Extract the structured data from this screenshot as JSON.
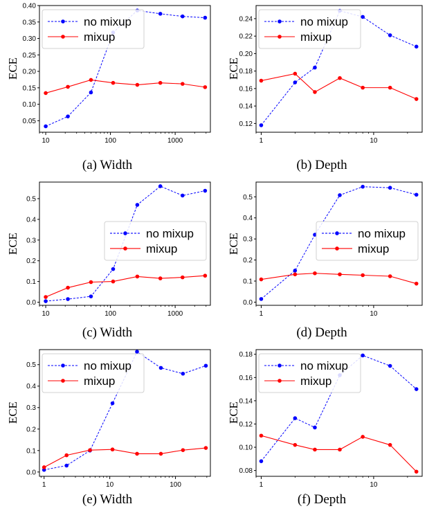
{
  "chart_data": [
    {
      "type": "line",
      "caption": "(a) Width",
      "ylabel": "ECE",
      "xscale": "log",
      "xlim": [
        8,
        3500
      ],
      "ylim": [
        0.015,
        0.4
      ],
      "xticks": [
        10,
        100,
        1000
      ],
      "yticks": [
        0.05,
        0.1,
        0.15,
        0.2,
        0.25,
        0.3,
        0.35,
        0.4
      ],
      "ytick_labels": [
        "0.05",
        "0.10",
        "0.15",
        "0.20",
        "0.25",
        "0.30",
        "0.35",
        "0.40"
      ],
      "legend": "top-left",
      "x": [
        10,
        22,
        50,
        110,
        260,
        590,
        1300,
        2900
      ],
      "series": [
        {
          "name": "no mixup",
          "color": "#0000ff",
          "dash": true,
          "values": [
            0.033,
            0.063,
            0.136,
            0.318,
            0.385,
            0.375,
            0.367,
            0.363
          ]
        },
        {
          "name": "mixup",
          "color": "#ff0000",
          "dash": false,
          "values": [
            0.134,
            0.153,
            0.174,
            0.165,
            0.159,
            0.165,
            0.162,
            0.152
          ]
        }
      ]
    },
    {
      "type": "line",
      "caption": "(b) Depth",
      "ylabel": "ECE",
      "xscale": "log",
      "xlim": [
        0.9,
        27
      ],
      "ylim": [
        0.11,
        0.255
      ],
      "xticks": [
        1,
        10
      ],
      "yticks": [
        0.12,
        0.14,
        0.16,
        0.18,
        0.2,
        0.22,
        0.24
      ],
      "ytick_labels": [
        "0.12",
        "0.14",
        "0.16",
        "0.18",
        "0.20",
        "0.22",
        "0.24"
      ],
      "legend": "top-left",
      "x": [
        1,
        2,
        3,
        5,
        8,
        14,
        24
      ],
      "series": [
        {
          "name": "no mixup",
          "color": "#0000ff",
          "dash": true,
          "values": [
            0.118,
            0.167,
            0.184,
            0.249,
            0.242,
            0.221,
            0.208
          ]
        },
        {
          "name": "mixup",
          "color": "#ff0000",
          "dash": false,
          "values": [
            0.169,
            0.177,
            0.156,
            0.172,
            0.161,
            0.161,
            0.148
          ]
        }
      ]
    },
    {
      "type": "line",
      "caption": "(c) Width",
      "ylabel": "ECE",
      "xscale": "log",
      "xlim": [
        8,
        3500
      ],
      "ylim": [
        -0.015,
        0.58
      ],
      "xticks": [
        10,
        100,
        1000
      ],
      "yticks": [
        0.0,
        0.1,
        0.2,
        0.3,
        0.4,
        0.5
      ],
      "ytick_labels": [
        "0.0",
        "0.1",
        "0.2",
        "0.3",
        "0.4",
        "0.5"
      ],
      "legend": "center-right",
      "x": [
        10,
        22,
        50,
        110,
        260,
        590,
        1300,
        2900
      ],
      "series": [
        {
          "name": "no mixup",
          "color": "#0000ff",
          "dash": true,
          "values": [
            0.005,
            0.015,
            0.028,
            0.16,
            0.47,
            0.56,
            0.515,
            0.538
          ]
        },
        {
          "name": "mixup",
          "color": "#ff0000",
          "dash": false,
          "values": [
            0.025,
            0.07,
            0.097,
            0.1,
            0.124,
            0.115,
            0.12,
            0.128
          ]
        }
      ]
    },
    {
      "type": "line",
      "caption": "(d) Depth",
      "ylabel": "ECE",
      "xscale": "log",
      "xlim": [
        0.9,
        27
      ],
      "ylim": [
        -0.015,
        0.57
      ],
      "xticks": [
        1,
        10
      ],
      "yticks": [
        0.0,
        0.1,
        0.2,
        0.3,
        0.4,
        0.5
      ],
      "ytick_labels": [
        "0.0",
        "0.1",
        "0.2",
        "0.3",
        "0.4",
        "0.5"
      ],
      "legend": "center-right",
      "x": [
        1,
        2,
        3,
        5,
        8,
        14,
        24
      ],
      "series": [
        {
          "name": "no mixup",
          "color": "#0000ff",
          "dash": true,
          "values": [
            0.015,
            0.15,
            0.32,
            0.508,
            0.548,
            0.543,
            0.51
          ]
        },
        {
          "name": "mixup",
          "color": "#ff0000",
          "dash": false,
          "values": [
            0.108,
            0.132,
            0.137,
            0.132,
            0.128,
            0.123,
            0.088
          ]
        }
      ]
    },
    {
      "type": "line",
      "caption": "(e) Width",
      "ylabel": "ECE",
      "xscale": "log",
      "xlim": [
        0.85,
        340
      ],
      "ylim": [
        -0.02,
        0.57
      ],
      "xticks": [
        1,
        10,
        100
      ],
      "yticks": [
        0.0,
        0.1,
        0.2,
        0.3,
        0.4,
        0.5
      ],
      "ytick_labels": [
        "0.0",
        "0.1",
        "0.2",
        "0.3",
        "0.4",
        "0.5"
      ],
      "legend": "top-left",
      "x": [
        1,
        2.2,
        5,
        11,
        26,
        60,
        130,
        290
      ],
      "series": [
        {
          "name": "no mixup",
          "color": "#0000ff",
          "dash": true,
          "values": [
            0.01,
            0.03,
            0.1,
            0.32,
            0.56,
            0.485,
            0.458,
            0.495
          ]
        },
        {
          "name": "mixup",
          "color": "#ff0000",
          "dash": false,
          "values": [
            0.022,
            0.078,
            0.102,
            0.105,
            0.085,
            0.085,
            0.102,
            0.112
          ]
        }
      ]
    },
    {
      "type": "line",
      "caption": "(f) Depth",
      "ylabel": "ECE",
      "xscale": "log",
      "xlim": [
        0.9,
        27
      ],
      "ylim": [
        0.075,
        0.184
      ],
      "xticks": [
        1,
        10
      ],
      "yticks": [
        0.08,
        0.1,
        0.12,
        0.14,
        0.16,
        0.18
      ],
      "ytick_labels": [
        "0.08",
        "0.10",
        "0.12",
        "0.14",
        "0.16",
        "0.18"
      ],
      "legend": "top-left",
      "x": [
        1,
        2,
        3,
        5,
        8,
        14,
        24
      ],
      "series": [
        {
          "name": "no mixup",
          "color": "#0000ff",
          "dash": true,
          "values": [
            0.088,
            0.125,
            0.117,
            0.162,
            0.179,
            0.17,
            0.15
          ]
        },
        {
          "name": "mixup",
          "color": "#ff0000",
          "dash": false,
          "values": [
            0.11,
            0.102,
            0.098,
            0.098,
            0.109,
            0.102,
            0.079
          ]
        }
      ]
    }
  ]
}
